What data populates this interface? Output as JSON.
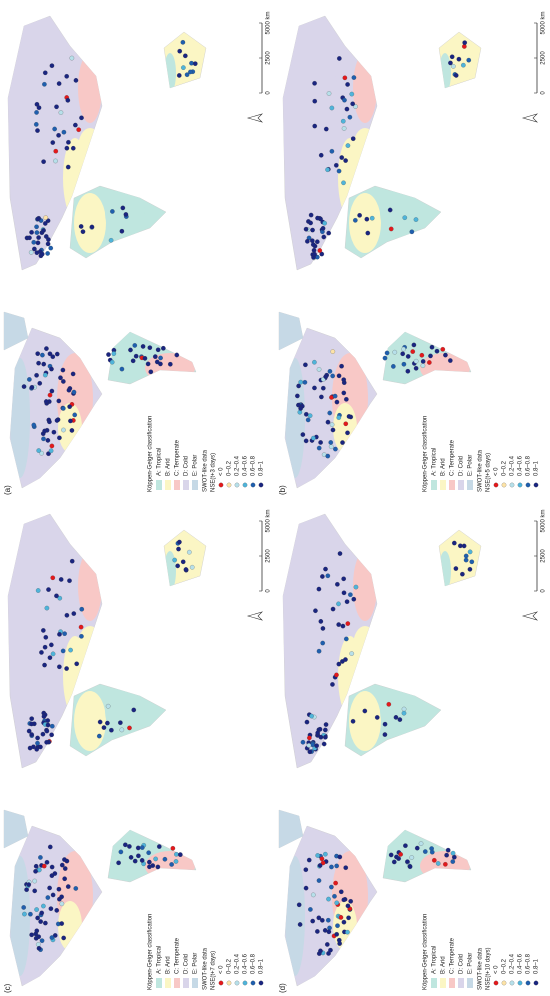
{
  "panels": [
    {
      "label": "(a)",
      "nse_title": "NSE(t+3 days)"
    },
    {
      "label": "(b)",
      "nse_title": "NSE(t+5 days)"
    },
    {
      "label": "(c)",
      "nse_title": "NSE(t+7 days)"
    },
    {
      "label": "(d)",
      "nse_title": "NSE(t+10 days)"
    }
  ],
  "legend": {
    "climate_title": "Köppen-Geiger classification",
    "climate_classes": [
      {
        "label": "A: Tropical",
        "color": "#bfe6df"
      },
      {
        "label": "B: Arid",
        "color": "#fbf6c4"
      },
      {
        "label": "C: Temperate",
        "color": "#f8c8c6"
      },
      {
        "label": "D: Cold",
        "color": "#d9d5ea"
      },
      {
        "label": "E: Polar",
        "color": "#c6d9e6"
      }
    ],
    "data_title": "SWOT-like data",
    "nse_classes": [
      {
        "label": "< 0",
        "color": "#e3191c"
      },
      {
        "label": "0–0.2",
        "color": "#fde3a7"
      },
      {
        "label": "0.2–0.4",
        "color": "#b7e0ea"
      },
      {
        "label": "0.4–0.6",
        "color": "#4fb4da"
      },
      {
        "label": "0.6–0.8",
        "color": "#1f5fae"
      },
      {
        "label": "0.8–1",
        "color": "#1a2580"
      }
    ]
  },
  "scale": {
    "labels": [
      "0",
      "2500",
      "5000 km"
    ]
  }
}
